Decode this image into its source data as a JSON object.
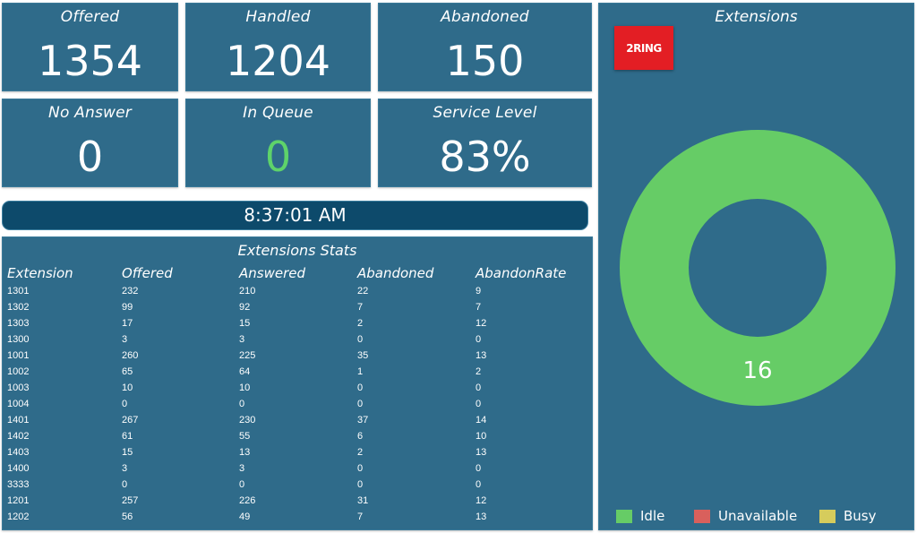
{
  "kpis": {
    "offered": {
      "label": "Offered",
      "value": "1354"
    },
    "handled": {
      "label": "Handled",
      "value": "1204"
    },
    "abandoned": {
      "label": "Abandoned",
      "value": "150"
    },
    "no_answer": {
      "label": "No Answer",
      "value": "0"
    },
    "in_queue": {
      "label": "In Queue",
      "value": "0",
      "value_color": "#5ed36a"
    },
    "service_level": {
      "label": "Service Level",
      "value": "83%"
    }
  },
  "clock": "8:37:01 AM",
  "stats": {
    "title": "Extensions Stats",
    "headers": [
      "Extension",
      "Offered",
      "Answered",
      "Abandoned",
      "AbandonRate"
    ],
    "rows": [
      [
        "1301",
        "232",
        "210",
        "22",
        "9"
      ],
      [
        "1302",
        "99",
        "92",
        "7",
        "7"
      ],
      [
        "1303",
        "17",
        "15",
        "2",
        "12"
      ],
      [
        "1300",
        "3",
        "3",
        "0",
        "0"
      ],
      [
        "1001",
        "260",
        "225",
        "35",
        "13"
      ],
      [
        "1002",
        "65",
        "64",
        "1",
        "2"
      ],
      [
        "1003",
        "10",
        "10",
        "0",
        "0"
      ],
      [
        "1004",
        "0",
        "0",
        "0",
        "0"
      ],
      [
        "1401",
        "267",
        "230",
        "37",
        "14"
      ],
      [
        "1402",
        "61",
        "55",
        "6",
        "10"
      ],
      [
        "1403",
        "15",
        "13",
        "2",
        "13"
      ],
      [
        "1400",
        "3",
        "3",
        "0",
        "0"
      ],
      [
        "3333",
        "0",
        "0",
        "0",
        "0"
      ],
      [
        "1201",
        "257",
        "226",
        "31",
        "12"
      ],
      [
        "1202",
        "56",
        "49",
        "7",
        "13"
      ]
    ]
  },
  "extensions": {
    "title": "Extensions",
    "logo_text": "2RING",
    "chart_data": {
      "type": "pie",
      "donut": true,
      "slices": [
        {
          "name": "Idle",
          "value": 16,
          "color": "#66cc66"
        },
        {
          "name": "Unavailable",
          "value": 0,
          "color": "#d9605c"
        },
        {
          "name": "Busy",
          "value": 0,
          "color": "#d6cc5c"
        }
      ],
      "center_label": "16",
      "legend_position": "bottom"
    },
    "legend": [
      {
        "label": "Idle",
        "color": "#66cc66"
      },
      {
        "label": "Unavailable",
        "color": "#d9605c"
      },
      {
        "label": "Busy",
        "color": "#d6cc5c"
      }
    ]
  },
  "colors": {
    "tile_bg": "#2f6b8a",
    "clock_bg": "#0d4a6b",
    "logo_red": "#e31e24"
  }
}
